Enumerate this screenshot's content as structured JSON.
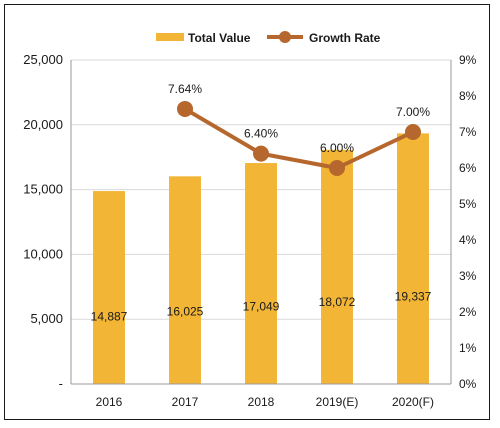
{
  "chart_data": {
    "type": "bar",
    "categories": [
      "2016",
      "2017",
      "2018",
      "2019(E)",
      "2020(F)"
    ],
    "series": [
      {
        "name": "Total Value",
        "type": "bar",
        "axis": "left",
        "values": [
          14887,
          16025,
          17049,
          18072,
          19337
        ],
        "labels": [
          "14,887",
          "16,025",
          "17,049",
          "18,072",
          "19,337"
        ],
        "color": "#f2b535"
      },
      {
        "name": "Growth Rate",
        "type": "line",
        "axis": "right",
        "values": [
          null,
          7.64,
          6.4,
          6.0,
          7.0
        ],
        "labels": [
          "",
          "7.64%",
          "6.40%",
          "6.00%",
          "7.00%"
        ],
        "color": "#b5672d"
      }
    ],
    "y_left": {
      "ylim": [
        0,
        25000
      ],
      "ticks": [
        0,
        5000,
        10000,
        15000,
        20000,
        25000
      ],
      "tick_labels": [
        "-",
        "5,000",
        "10,000",
        "15,000",
        "20,000",
        "25,000"
      ]
    },
    "y_right": {
      "ylim": [
        0,
        9
      ],
      "ticks": [
        0,
        1,
        2,
        3,
        4,
        5,
        6,
        7,
        8,
        9
      ],
      "tick_labels": [
        "0%",
        "1%",
        "2%",
        "3%",
        "4%",
        "5%",
        "6%",
        "7%",
        "8%",
        "9%"
      ]
    },
    "legend_position": "top-center",
    "grid": "horizontal"
  }
}
